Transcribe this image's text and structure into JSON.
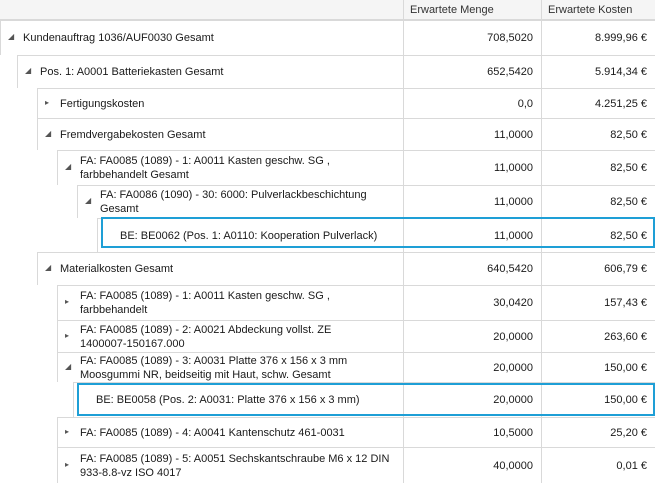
{
  "header": {
    "col_menge": "Erwartete Menge",
    "col_kosten": "Erwartete Kosten"
  },
  "rows": [
    {
      "label1": "Kundenauftrag 1036/AUF0030 Gesamt",
      "label2": "",
      "menge": "708,5020",
      "kosten": "8.999,96 €",
      "icon": "collapse-triangle"
    },
    {
      "label1": "Pos. 1: A0001 Batteriekasten Gesamt",
      "label2": "",
      "menge": "652,5420",
      "kosten": "5.914,34 €",
      "icon": "collapse-triangle"
    },
    {
      "label1": "Fertigungskosten",
      "label2": "",
      "menge": "0,0",
      "kosten": "4.251,25 €",
      "icon": "expand-triangle"
    },
    {
      "label1": "Fremdvergabekosten Gesamt",
      "label2": "",
      "menge": "11,0000",
      "kosten": "82,50 €",
      "icon": "collapse-triangle"
    },
    {
      "label1": "FA: FA0085 (1089) - 1: A0011 Kasten geschw. SG ,",
      "label2": "farbbehandelt Gesamt",
      "menge": "11,0000",
      "kosten": "82,50 €",
      "icon": "collapse-triangle"
    },
    {
      "label1": "FA: FA0086 (1090) - 30: 6000: Pulverlackbeschichtung",
      "label2": "Gesamt",
      "menge": "11,0000",
      "kosten": "82,50 €",
      "icon": "collapse-triangle"
    },
    {
      "label1": "BE: BE0062 (Pos. 1: A0110: Kooperation Pulverlack)",
      "label2": "",
      "menge": "11,0000",
      "kosten": "82,50 €",
      "icon": ""
    },
    {
      "label1": "Materialkosten Gesamt",
      "label2": "",
      "menge": "640,5420",
      "kosten": "606,79 €",
      "icon": "collapse-triangle"
    },
    {
      "label1": "FA: FA0085 (1089) - 1: A0011 Kasten geschw. SG ,",
      "label2": "farbbehandelt",
      "menge": "30,0420",
      "kosten": "157,43 €",
      "icon": "expand-triangle"
    },
    {
      "label1": "FA: FA0085 (1089) - 2: A0021 Abdeckung vollst. ZE",
      "label2": "1400007-150167.000",
      "menge": "20,0000",
      "kosten": "263,60 €",
      "icon": "expand-triangle"
    },
    {
      "label1": "FA: FA0085 (1089) - 3: A0031 Platte 376 x 156 x 3 mm",
      "label2": "Moosgummi NR, beidseitig mit Haut, schw. Gesamt",
      "menge": "20,0000",
      "kosten": "150,00 €",
      "icon": "collapse-triangle"
    },
    {
      "label1": "BE: BE0058 (Pos. 2: A0031: Platte 376 x 156 x 3 mm)",
      "label2": "",
      "menge": "20,0000",
      "kosten": "150,00 €",
      "icon": ""
    },
    {
      "label1": "FA: FA0085 (1089) - 4: A0041 Kantenschutz 461-0031",
      "label2": "",
      "menge": "10,5000",
      "kosten": "25,20 €",
      "icon": "expand-triangle"
    },
    {
      "label1": "FA: FA0085 (1089) - 5: A0051 Sechskantschraube  M6 x 12 DIN",
      "label2": "933-8.8-vz ISO 4017",
      "menge": "40,0000",
      "kosten": "0,01 €",
      "icon": "expand-triangle"
    }
  ]
}
